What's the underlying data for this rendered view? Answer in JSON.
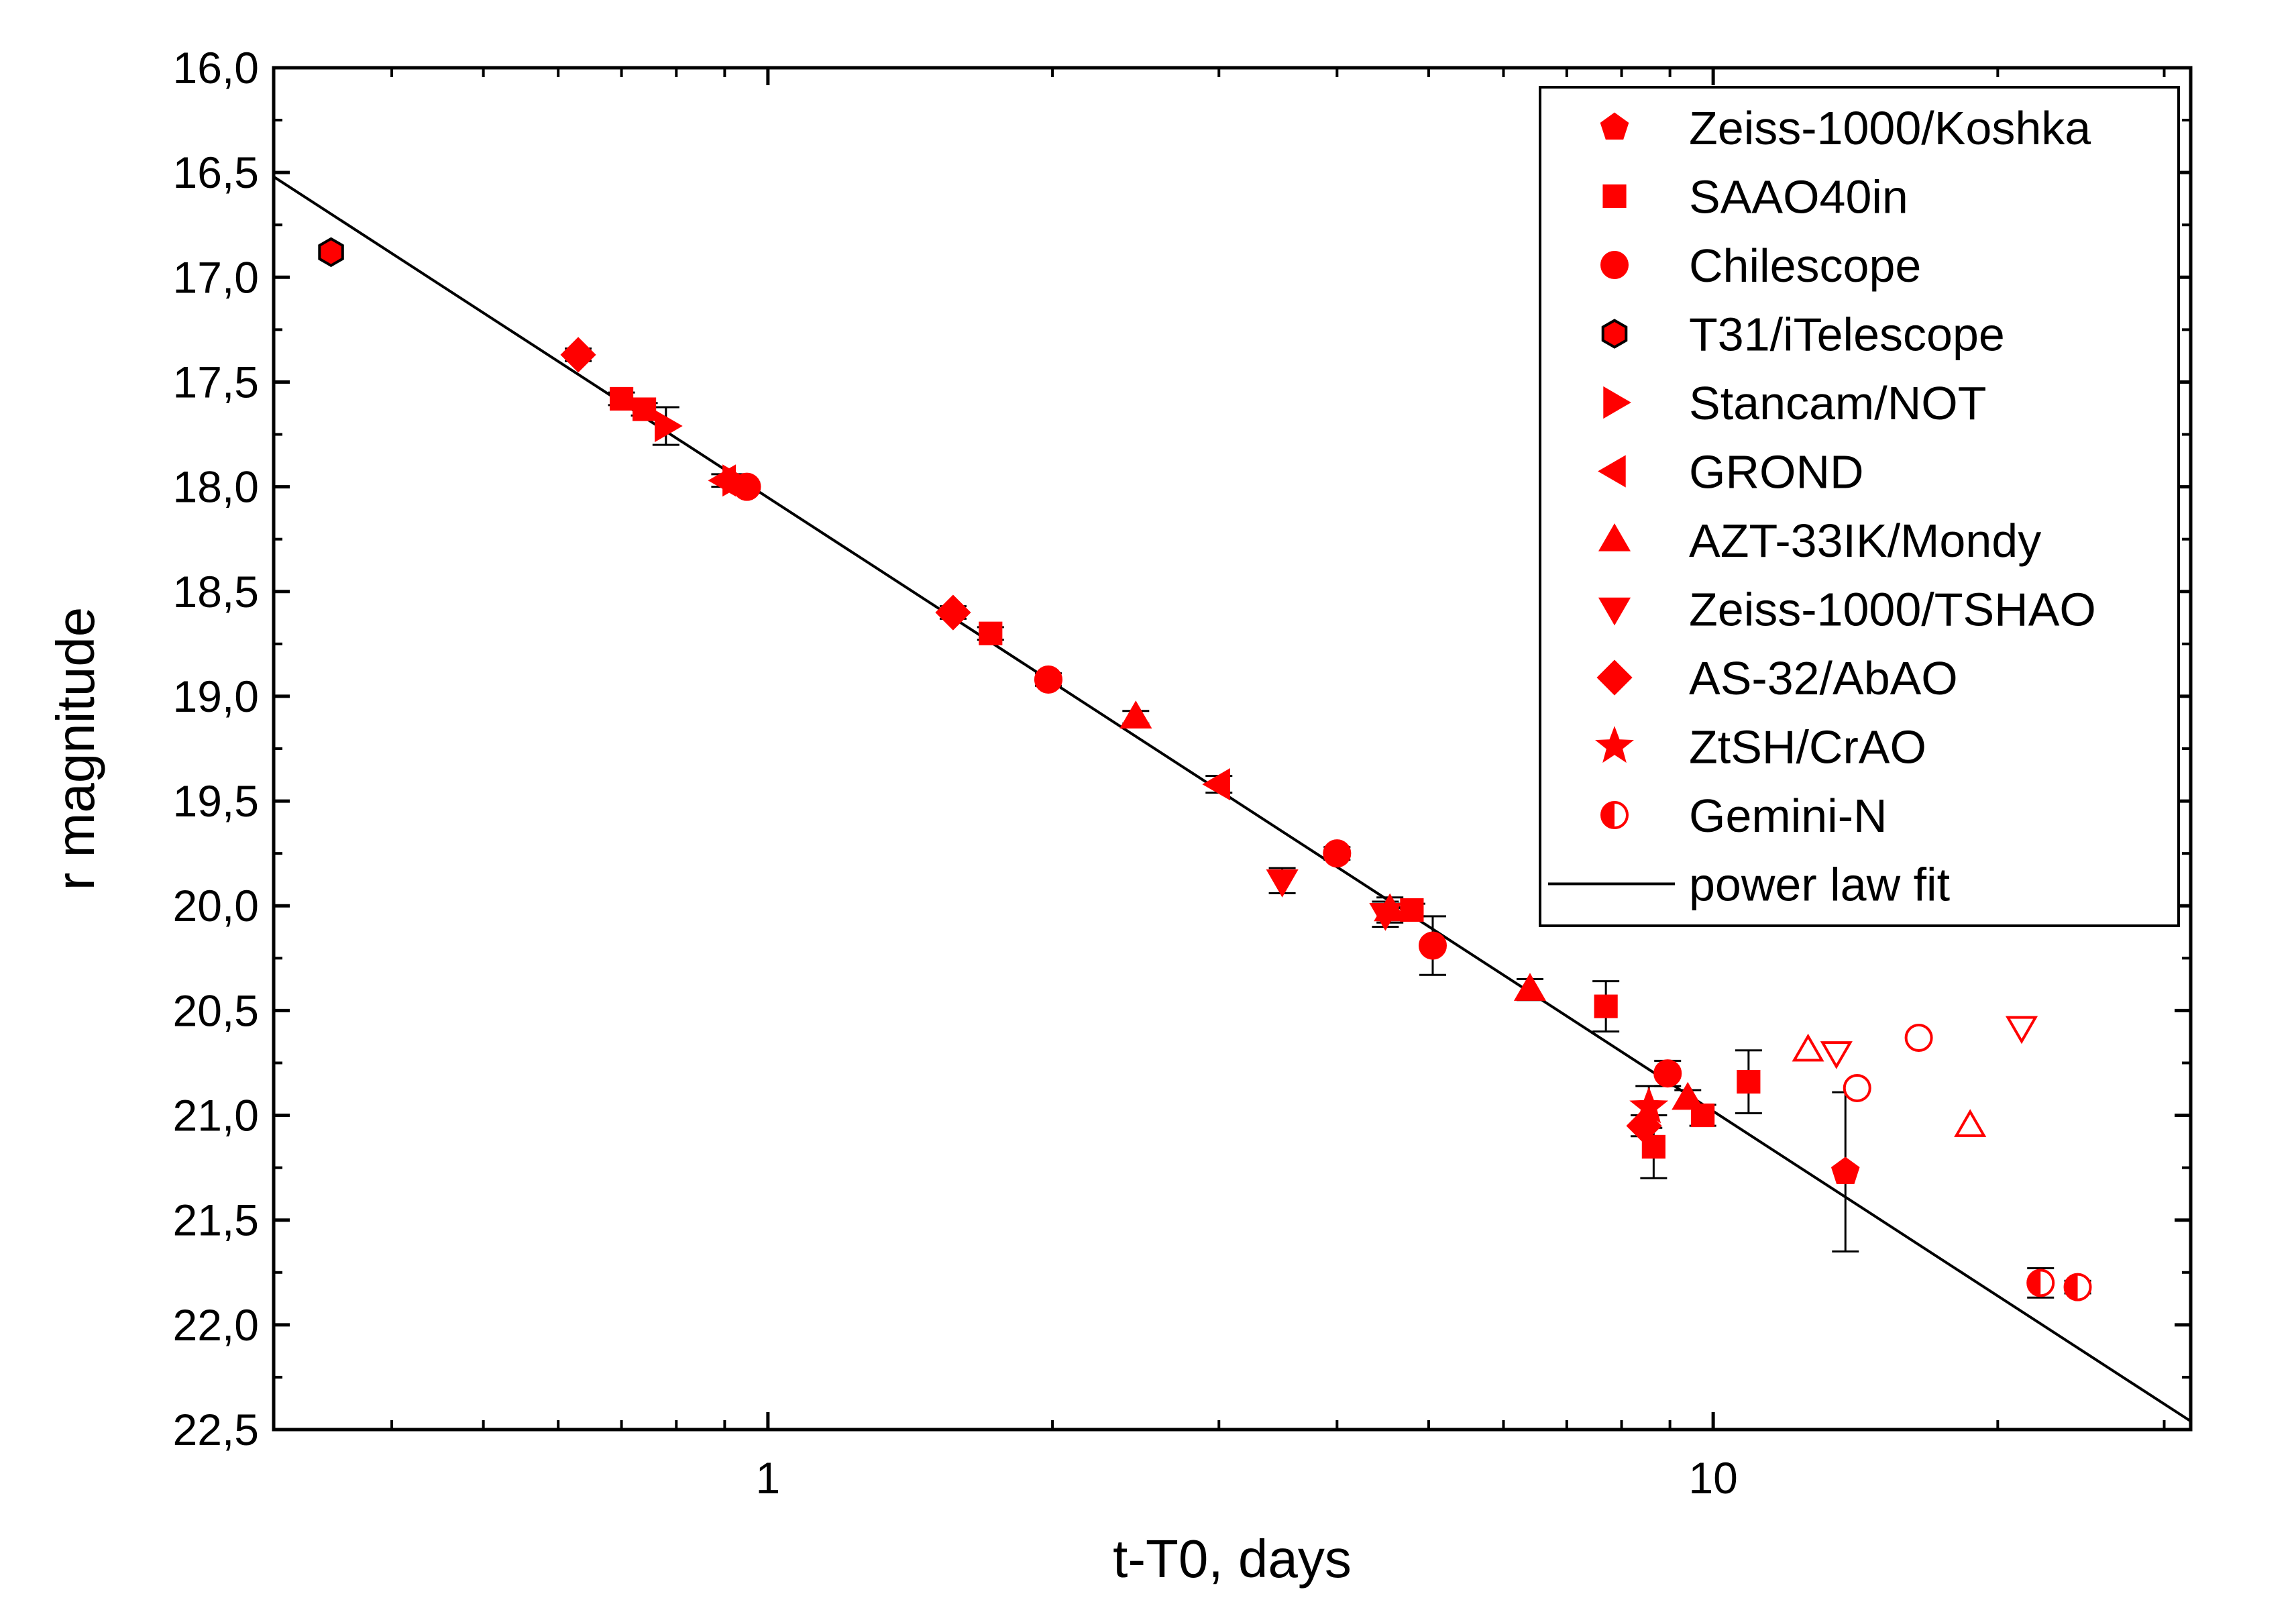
{
  "chart_data": {
    "type": "scatter",
    "title": "",
    "xlabel": "t-T0, days",
    "ylabel": "r magnitude",
    "xscale": "log",
    "xlim": [
      0.3,
      32
    ],
    "ylim": [
      22.5,
      16.0
    ],
    "y_inverted": true,
    "x_ticks": [
      1,
      10
    ],
    "x_tick_labels": [
      "1",
      "10"
    ],
    "y_ticks": [
      16.0,
      16.5,
      17.0,
      17.5,
      18.0,
      18.5,
      19.0,
      19.5,
      20.0,
      20.5,
      21.0,
      21.5,
      22.0,
      22.5
    ],
    "y_tick_labels": [
      "16,0",
      "16,5",
      "17,0",
      "17,5",
      "18,0",
      "18,5",
      "19,0",
      "19,5",
      "20,0",
      "20,5",
      "21,0",
      "21,5",
      "22,0",
      "22,5"
    ],
    "grid": false,
    "legend_position": "top-right",
    "colors": {
      "marker": "#ff0000",
      "line": "#000000",
      "errorbar": "#000000"
    },
    "series": [
      {
        "name": "Zeiss-1000/Koshka",
        "marker": "pentagon",
        "points": [
          {
            "x": 13.8,
            "y": 21.27,
            "err": 0.38
          }
        ]
      },
      {
        "name": "SAAO40in",
        "marker": "square",
        "points": [
          {
            "x": 0.7,
            "y": 17.58,
            "err": 0.03
          },
          {
            "x": 0.74,
            "y": 17.63,
            "err": 0.03
          },
          {
            "x": 1.72,
            "y": 18.7,
            "err": 0.03
          },
          {
            "x": 4.8,
            "y": 20.02,
            "err": 0.03
          },
          {
            "x": 7.7,
            "y": 20.48,
            "err": 0.12
          },
          {
            "x": 8.65,
            "y": 21.15,
            "err": 0.15
          },
          {
            "x": 9.75,
            "y": 21.0,
            "err": 0.05
          },
          {
            "x": 10.9,
            "y": 20.84,
            "err": 0.15
          }
        ]
      },
      {
        "name": "Chilescope",
        "marker": "circle",
        "points": [
          {
            "x": 0.95,
            "y": 18.0,
            "err": 0.02
          },
          {
            "x": 1.98,
            "y": 18.92,
            "err": 0.03
          },
          {
            "x": 4.0,
            "y": 19.75,
            "err": 0.03
          },
          {
            "x": 5.05,
            "y": 20.19,
            "err": 0.14
          },
          {
            "x": 8.95,
            "y": 20.8,
            "err": 0.06
          }
        ]
      },
      {
        "name": "T31/iTelescope",
        "marker": "hexagon",
        "points": [
          {
            "x": 0.345,
            "y": 16.88,
            "err": 0
          }
        ]
      },
      {
        "name": "Stancam/NOT",
        "marker": "triangle-right",
        "points": [
          {
            "x": 0.78,
            "y": 17.71,
            "err": 0.09
          },
          {
            "x": 0.92,
            "y": 17.97,
            "err": 0.03
          }
        ]
      },
      {
        "name": "GROND",
        "marker": "triangle-left",
        "points": [
          {
            "x": 0.9,
            "y": 17.97,
            "err": 0.03
          },
          {
            "x": 3.0,
            "y": 19.42,
            "err": 0.04
          }
        ]
      },
      {
        "name": "AZT-33IK/Mondy",
        "marker": "triangle-up",
        "points": [
          {
            "x": 2.45,
            "y": 19.1,
            "err": 0.03
          },
          {
            "x": 4.55,
            "y": 20.02,
            "err": 0.06
          },
          {
            "x": 6.4,
            "y": 20.4,
            "err": 0.05
          },
          {
            "x": 9.4,
            "y": 20.92,
            "err": 0.04
          }
        ]
      },
      {
        "name": "Zeiss-1000/TSHAO",
        "marker": "triangle-down",
        "points": [
          {
            "x": 3.5,
            "y": 19.88,
            "err": 0.06
          },
          {
            "x": 4.5,
            "y": 20.04,
            "err": 0.06
          }
        ]
      },
      {
        "name": "AS-32/AbAO",
        "marker": "diamond",
        "points": [
          {
            "x": 0.63,
            "y": 17.37,
            "err": 0.03
          },
          {
            "x": 1.57,
            "y": 18.6,
            "err": 0.03
          },
          {
            "x": 8.45,
            "y": 21.05,
            "err": 0.05
          }
        ]
      },
      {
        "name": "ZtSH/CrAO",
        "marker": "star",
        "points": [
          {
            "x": 8.55,
            "y": 20.96,
            "err": 0.1
          }
        ]
      },
      {
        "name": "Gemini-N",
        "marker": "half-circle",
        "points": [
          {
            "x": 22.2,
            "y": 21.8,
            "err": 0.07
          },
          {
            "x": 24.3,
            "y": 21.82,
            "err": 0.03
          }
        ]
      }
    ],
    "upper_limits": [
      {
        "marker": "triangle-up",
        "x": 12.6,
        "y": 20.69
      },
      {
        "marker": "triangle-down",
        "x": 13.5,
        "y": 20.7
      },
      {
        "marker": "circle",
        "x": 14.2,
        "y": 20.87
      },
      {
        "marker": "circle",
        "x": 16.5,
        "y": 20.63
      },
      {
        "marker": "triangle-up",
        "x": 18.7,
        "y": 21.05
      },
      {
        "marker": "triangle-down",
        "x": 21.2,
        "y": 20.58
      }
    ],
    "fit": {
      "name": "power law fit",
      "points": [
        {
          "x": 0.3,
          "y": 16.52
        },
        {
          "x": 32,
          "y": 22.46
        }
      ]
    }
  }
}
